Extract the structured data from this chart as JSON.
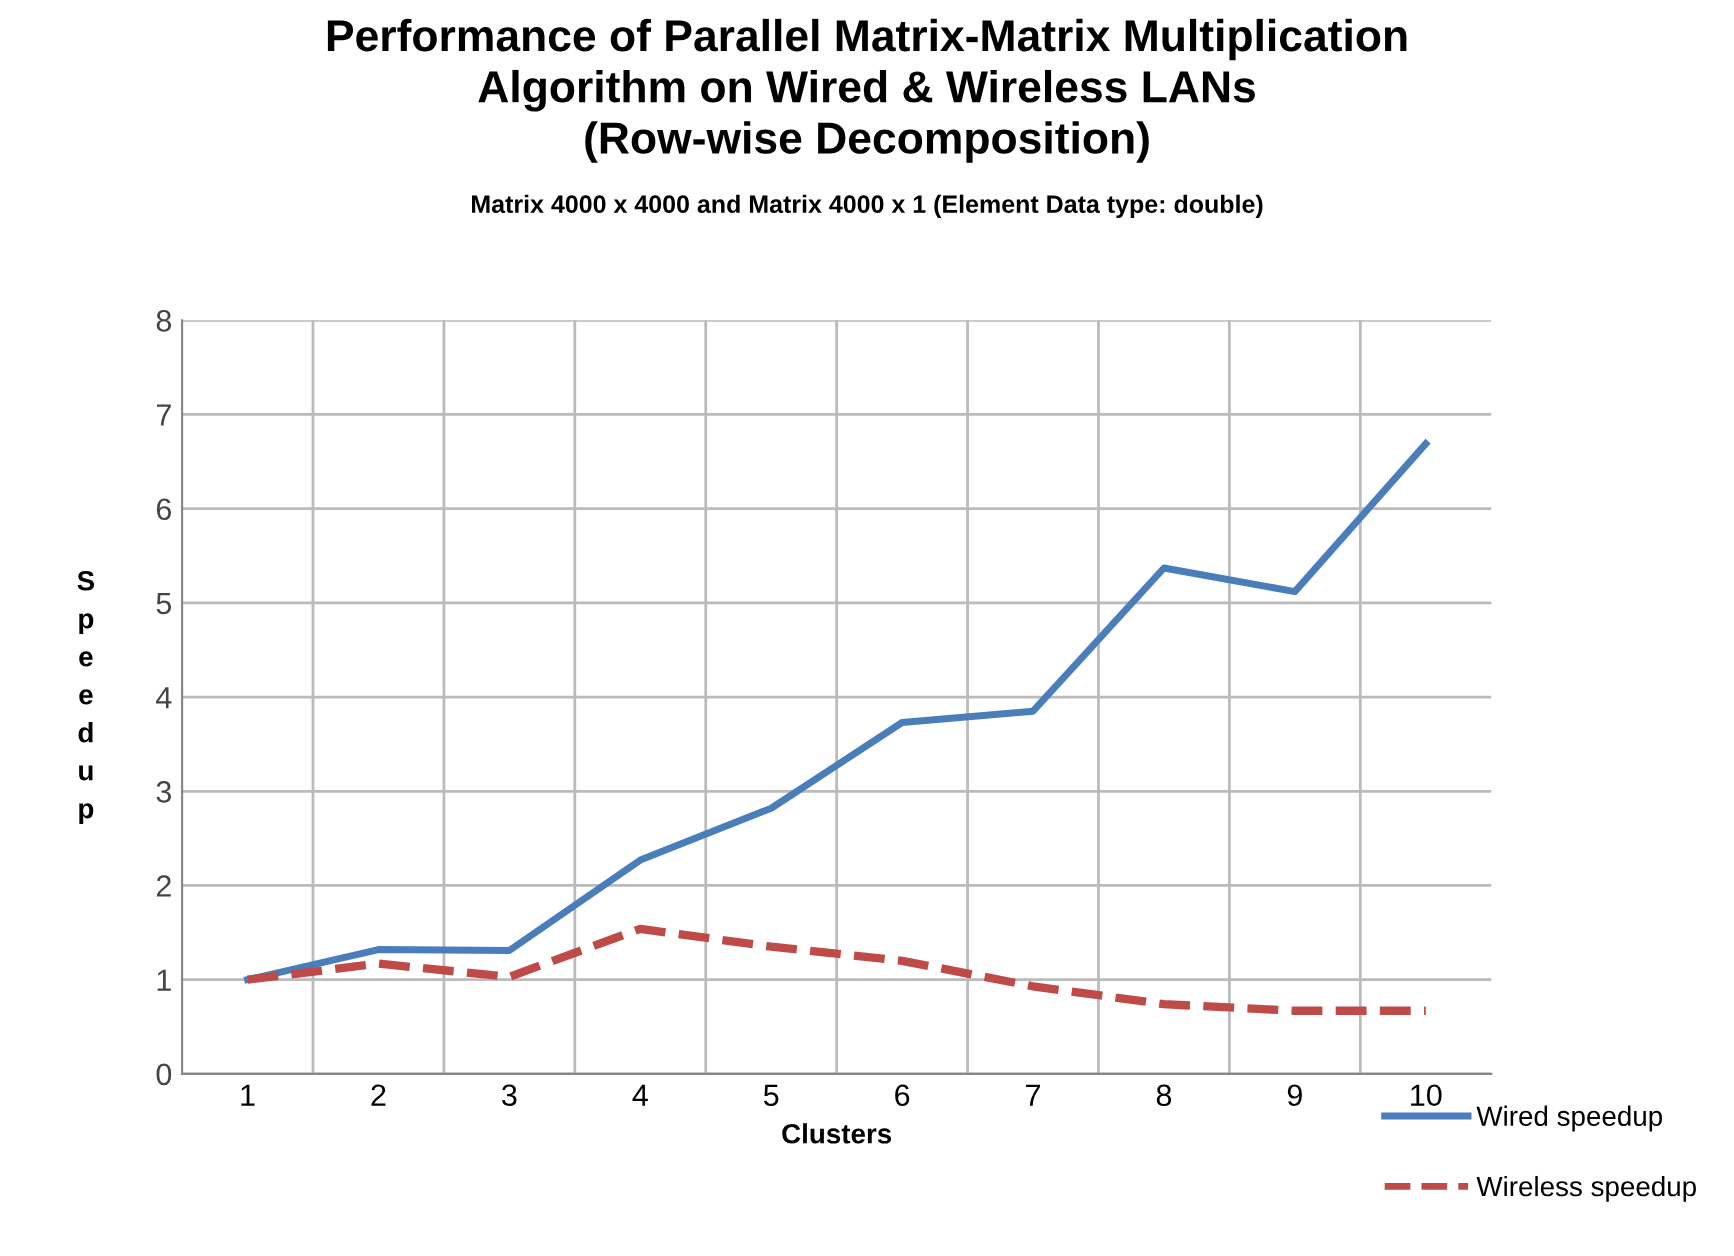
{
  "chart_data": {
    "type": "line",
    "title": "Performance of Parallel Matrix-Matrix Multiplication\nAlgorithm on Wired & Wireless LANs\n(Row-wise Decomposition)",
    "subtitle": "Matrix 4000 x 4000 and Matrix 4000 x 1 (Element Data type: double)",
    "xlabel": "Clusters",
    "ylabel": "Speedup",
    "categories": [
      "1",
      "2",
      "3",
      "4",
      "5",
      "6",
      "7",
      "8",
      "9",
      "10"
    ],
    "series": [
      {
        "name": "Wired speedup",
        "color": "#4a7ebb",
        "line_style": "solid",
        "values": [
          1.0,
          1.32,
          1.31,
          2.27,
          2.82,
          3.73,
          3.85,
          5.37,
          5.12,
          6.69
        ]
      },
      {
        "name": "Wireless speedup",
        "color": "#be4b48",
        "line_style": "dashed",
        "values": [
          1.0,
          1.17,
          1.03,
          1.54,
          1.35,
          1.2,
          0.93,
          0.74,
          0.67,
          0.67
        ]
      }
    ],
    "ylim": [
      0,
      8
    ],
    "yticks": [
      0,
      1,
      2,
      3,
      4,
      5,
      6,
      7,
      8
    ],
    "grid": true,
    "legend": "bottom right"
  }
}
